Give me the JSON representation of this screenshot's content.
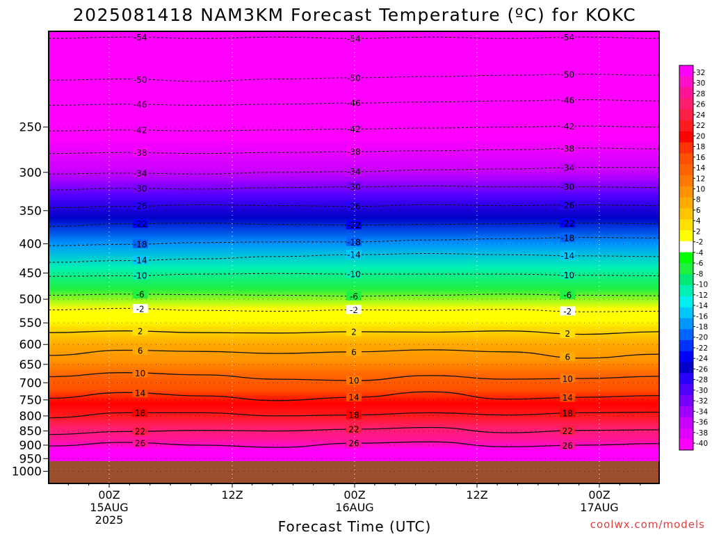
{
  "chart_data": {
    "type": "heatmap",
    "title": "2025081418 NAM3KM Forecast Temperature (ºC) for KOKC",
    "xlabel": "Forecast Time (UTC)",
    "ylabel": "",
    "credit": "coolwx.com/models",
    "y_scale": "log",
    "ylim": [
      1050,
      170
    ],
    "y_ticks": [
      250,
      300,
      350,
      400,
      450,
      500,
      550,
      600,
      650,
      700,
      750,
      800,
      850,
      900,
      950,
      1000
    ],
    "x_ticks": [
      {
        "lines": [
          "00Z",
          "15AUG",
          "2025"
        ]
      },
      {
        "lines": [
          "12Z"
        ]
      },
      {
        "lines": [
          "00Z",
          "16AUG"
        ]
      },
      {
        "lines": [
          "12Z"
        ]
      },
      {
        "lines": [
          "00Z",
          "17AUG"
        ]
      }
    ],
    "surface_pressure": 960,
    "colorbar": {
      "labels": [
        "32",
        "30",
        "28",
        "26",
        "24",
        "22",
        "20",
        "18",
        "16",
        "14",
        "12",
        "10",
        "8",
        "6",
        "4",
        "2",
        "-2",
        "-4",
        "-6",
        "-8",
        "-10",
        "-12",
        "-14",
        "-16",
        "-18",
        "-20",
        "-22",
        "-24",
        "-26",
        "-28",
        "-30",
        "-32",
        "-34",
        "-36",
        "-38",
        "-40"
      ],
      "colors": [
        "#ff00ff",
        "#ff10c8",
        "#ff1496",
        "#ff1e6e",
        "#ff1e46",
        "#ff1a1e",
        "#ff0000",
        "#ff3200",
        "#ff5000",
        "#ff6400",
        "#ff7800",
        "#ff9200",
        "#ffaa00",
        "#ffc400",
        "#ffe000",
        "#ffff00",
        "#ffffff",
        "#00ff00",
        "#20f040",
        "#00e878",
        "#00f0b4",
        "#00f0f0",
        "#00c8ff",
        "#0096ff",
        "#0064ff",
        "#0032ff",
        "#0000ff",
        "#0000c8",
        "#2800ff",
        "#5000ff",
        "#7800ff",
        "#a000ff",
        "#c800ff",
        "#e000ff",
        "#ff00ff"
      ]
    },
    "temperature_profile": {
      "pressure": [
        170,
        220,
        260,
        300,
        330,
        360,
        400,
        440,
        480,
        520,
        545,
        560,
        600,
        640,
        680,
        720,
        760,
        800,
        840,
        880,
        920,
        960
      ],
      "temperature": [
        -58,
        -50,
        -44,
        -36,
        -30,
        -25,
        -18,
        -12,
        -7,
        -1,
        1,
        2,
        6,
        9,
        12,
        15,
        18,
        21,
        24,
        27,
        30,
        33
      ]
    },
    "isotherms": [
      {
        "label": "-54",
        "style": "dashed",
        "p": [
          175,
          174,
          175,
          174,
          175,
          174,
          175,
          174,
          175
        ]
      },
      {
        "label": "-50",
        "style": "dashed",
        "p": [
          207,
          206,
          208,
          206,
          205,
          204,
          203,
          202,
          203
        ]
      },
      {
        "label": "-46",
        "style": "dashed",
        "p": [
          229,
          228,
          229,
          228,
          227,
          226,
          225,
          224,
          225
        ]
      },
      {
        "label": "-42",
        "style": "dashed",
        "p": [
          254,
          253,
          254,
          253,
          252,
          251,
          250,
          249,
          250
        ]
      },
      {
        "label": "-38",
        "style": "dashed",
        "p": [
          278,
          277,
          278,
          277,
          276,
          275,
          274,
          272,
          273
        ]
      },
      {
        "label": "-34",
        "style": "dashed",
        "p": [
          302,
          301,
          302,
          300,
          299,
          297,
          296,
          294,
          294
        ]
      },
      {
        "label": "-30",
        "style": "dashed",
        "p": [
          322,
          320,
          321,
          319,
          318,
          317,
          318,
          318,
          319
        ]
      },
      {
        "label": "-26",
        "style": "dashed",
        "p": [
          346,
          344,
          342,
          343,
          344,
          342,
          343,
          342,
          343
        ]
      },
      {
        "label": "-22",
        "style": "dashed",
        "p": [
          373,
          369,
          368,
          370,
          371,
          370,
          369,
          368,
          369
        ]
      },
      {
        "label": "-18",
        "style": "dashed",
        "p": [
          403,
          401,
          398,
          397,
          397,
          394,
          392,
          390,
          391
        ]
      },
      {
        "label": "-14",
        "style": "dashed",
        "p": [
          431,
          428,
          425,
          421,
          418,
          416,
          418,
          420,
          421
        ]
      },
      {
        "label": "-10",
        "style": "dashed",
        "p": [
          456,
          455,
          452,
          451,
          452,
          452,
          452,
          454,
          455
        ]
      },
      {
        "label": "-6",
        "style": "dashed",
        "p": [
          492,
          490,
          491,
          492,
          494,
          492,
          490,
          492,
          493
        ]
      },
      {
        "label": "-2",
        "style": "dashed",
        "p": [
          522,
          519,
          523,
          525,
          522,
          523,
          521,
          526,
          525
        ]
      },
      {
        "label": "2",
        "style": "solid",
        "p": [
          572,
          568,
          572,
          573,
          570,
          571,
          568,
          576,
          570
        ]
      },
      {
        "label": "6",
        "style": "solid",
        "p": [
          627,
          614,
          617,
          622,
          618,
          613,
          618,
          634,
          624
        ]
      },
      {
        "label": "10",
        "style": "solid",
        "p": [
          683,
          672,
          678,
          690,
          694,
          680,
          690,
          688,
          682
        ]
      },
      {
        "label": "14",
        "style": "solid",
        "p": [
          745,
          728,
          738,
          752,
          742,
          726,
          748,
          742,
          737
        ]
      },
      {
        "label": "18",
        "style": "solid",
        "p": [
          806,
          790,
          790,
          800,
          797,
          790,
          797,
          790,
          788
        ]
      },
      {
        "label": "22",
        "style": "solid",
        "p": [
          862,
          852,
          848,
          850,
          844,
          838,
          856,
          848,
          846
        ]
      },
      {
        "label": "26",
        "style": "solid",
        "p": [
          903,
          890,
          900,
          908,
          893,
          888,
          906,
          900,
          894
        ]
      }
    ]
  }
}
